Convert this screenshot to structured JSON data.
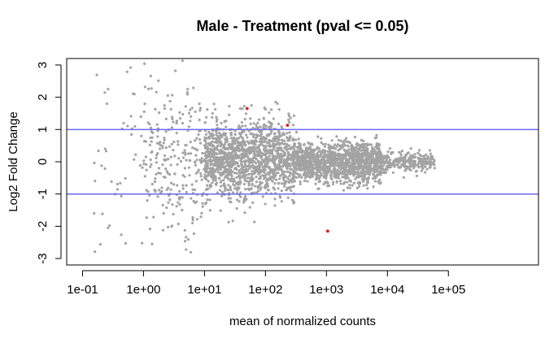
{
  "chart_data": {
    "type": "scatter",
    "title": "Male - Treatment  (pval <= 0.05)",
    "xlabel": "mean of normalized counts",
    "ylabel": "Log2 Fold Change",
    "xscale": "log10",
    "xlim": [
      0.055,
      3000000
    ],
    "ylim": [
      -3.2,
      3.2
    ],
    "xticks": [
      0.1,
      1,
      10,
      100,
      1000,
      10000,
      100000
    ],
    "xticklabels": [
      "1e-01",
      "1e+00",
      "1e+01",
      "1e+02",
      "1e+03",
      "1e+04",
      "1e+05"
    ],
    "yticks": [
      3,
      2,
      1,
      0,
      -1,
      -2,
      -3
    ],
    "yticklabels": [
      "3",
      "2",
      "1",
      "0",
      "-1",
      "-2",
      "-3"
    ],
    "hlines": [
      {
        "y": 1,
        "color": "#6b6bf2"
      },
      {
        "y": -1,
        "color": "#6b6bf2"
      }
    ],
    "grid": false,
    "legend": "none",
    "series": [
      {
        "color": "#a3a3a3",
        "density": [
          {
            "x_min": 10,
            "x_max": 300,
            "y_mean": 0.1,
            "y_sd": 0.6,
            "n": 1400
          },
          {
            "x_min": 300,
            "x_max": 8000,
            "y_mean": 0.0,
            "y_sd": 0.3,
            "n": 1300
          },
          {
            "x_min": 8000,
            "x_max": 60000,
            "y_mean": 0.0,
            "y_sd": 0.15,
            "n": 250
          },
          {
            "x_min": 1,
            "x_max": 10,
            "y_mean": 0.0,
            "y_sd": 1.1,
            "n": 250
          },
          {
            "x_min": 0.15,
            "x_max": 1,
            "y_mean": 0.0,
            "y_sd": 1.5,
            "n": 45
          }
        ]
      },
      {
        "color": "#e01b1b",
        "points": [
          {
            "x": 50,
            "y": 1.65
          },
          {
            "x": 230,
            "y": 1.13
          },
          {
            "x": 1050,
            "y": -2.15
          }
        ]
      }
    ]
  }
}
